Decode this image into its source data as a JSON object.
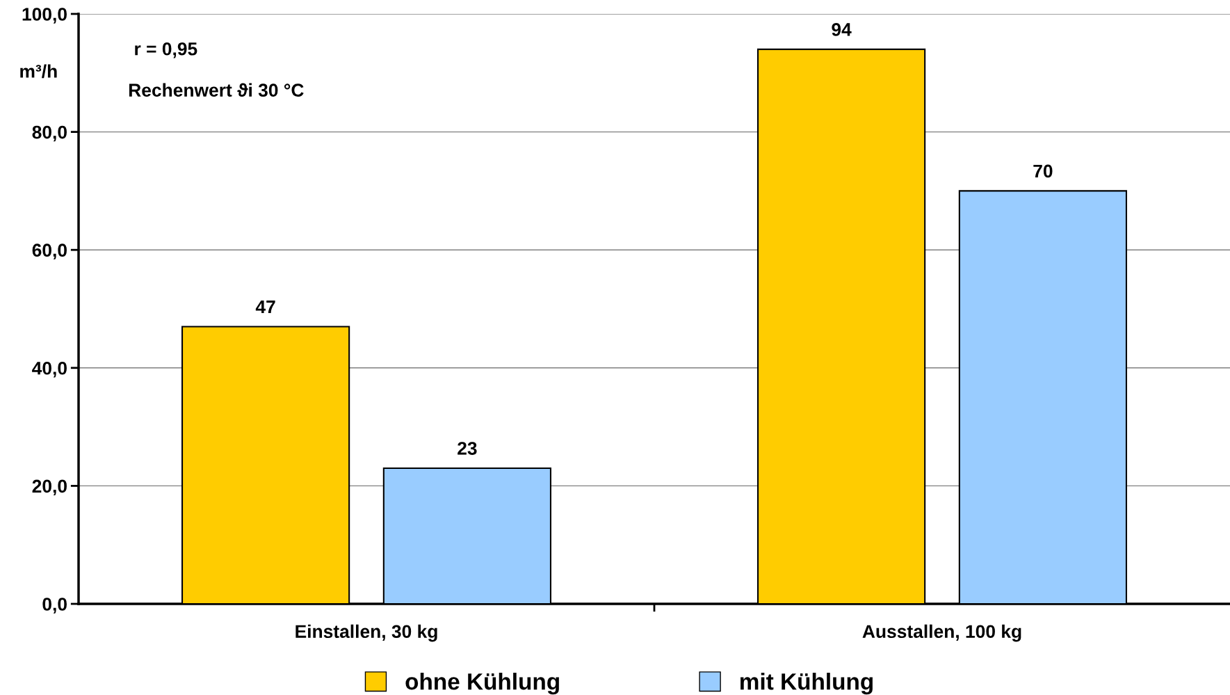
{
  "chart_data": {
    "type": "bar",
    "ylabel": "m³/h",
    "categories": [
      "Einstallen, 30 kg",
      "Ausstallen, 100 kg"
    ],
    "series": [
      {
        "name": "ohne Kühlung",
        "color": "#ffcc00",
        "values": [
          47,
          94
        ]
      },
      {
        "name": "mit Kühlung",
        "color": "#99ccff",
        "values": [
          23,
          70
        ]
      }
    ],
    "ylim": [
      0,
      100
    ],
    "yticks": [
      {
        "value": 0,
        "label": "0,0"
      },
      {
        "value": 20,
        "label": "20,0"
      },
      {
        "value": 40,
        "label": "40,0"
      },
      {
        "value": 60,
        "label": "60,0"
      },
      {
        "value": 80,
        "label": "80,0"
      },
      {
        "value": 100,
        "label": "100,0"
      }
    ],
    "grid": "y",
    "legend": "bottom",
    "data_labels": true,
    "annotations": [
      "r = 0,95",
      "Rechenwert ϑi 30 °C"
    ]
  }
}
